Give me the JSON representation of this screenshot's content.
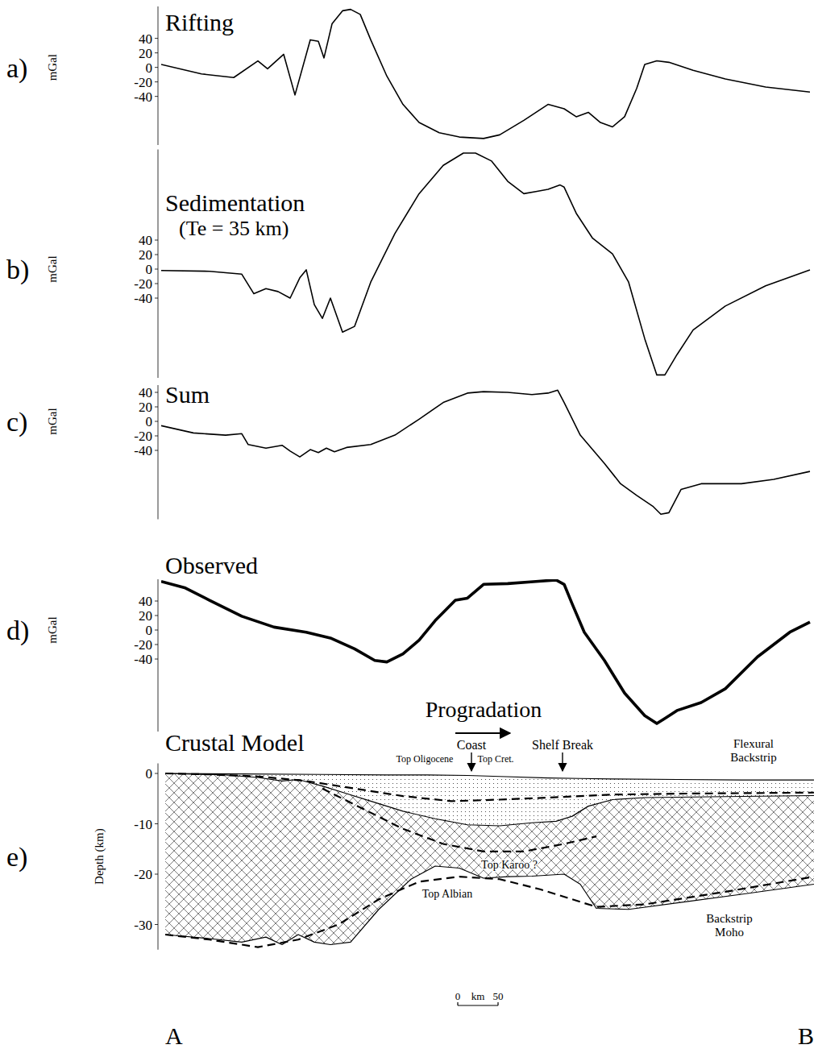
{
  "chart_data": [
    {
      "type": "line",
      "panel": "a)",
      "title": "Rifting",
      "ylabel": "mGal",
      "xlim": [
        0,
        810
      ],
      "ylim": [
        -107,
        84
      ],
      "yticks": [
        40,
        20,
        0,
        -20,
        -40
      ],
      "tick_labels": "y",
      "series": [
        {
          "color": "#000000",
          "line_style": "solid",
          "x": [
            0,
            50,
            90,
            120,
            132,
            152,
            166,
            185,
            195,
            202,
            212,
            225,
            235,
            247,
            260,
            280,
            300,
            320,
            345,
            370,
            400,
            420,
            450,
            480,
            500,
            515,
            530,
            545,
            560,
            575,
            590,
            600,
            615,
            630,
            660,
            700,
            750,
            805
          ],
          "values": [
            4,
            -9,
            -14,
            9,
            -2,
            18,
            -38,
            38,
            36,
            13,
            60,
            78,
            80,
            73,
            38,
            -12,
            -51,
            -76,
            -90,
            -96,
            -98,
            -93,
            -73,
            -51,
            -57,
            -68,
            -62,
            -76,
            -82,
            -68,
            -29,
            4,
            9,
            7,
            -4,
            -16,
            -27,
            -34
          ]
        }
      ]
    },
    {
      "type": "line",
      "panel": "b)",
      "title": "Sedimentation",
      "subtitle": "(Te = 35 km)",
      "ylabel": "mGal",
      "xlim": [
        0,
        810
      ],
      "ylim": [
        -150,
        165
      ],
      "yticks": [
        40,
        20,
        0,
        -20,
        -40
      ],
      "tick_labels": "y",
      "series": [
        {
          "color": "#000000",
          "line_style": "solid",
          "x": [
            0,
            60,
            100,
            115,
            130,
            145,
            160,
            172,
            180,
            190,
            200,
            210,
            225,
            240,
            260,
            290,
            320,
            350,
            375,
            390,
            410,
            430,
            450,
            465,
            480,
            495,
            500,
            515,
            535,
            560,
            580,
            600,
            615,
            625,
            640,
            660,
            700,
            750,
            805
          ],
          "values": [
            -2,
            -3,
            -7,
            -34,
            -27,
            -31,
            -40,
            -12,
            -1,
            -49,
            -68,
            -40,
            -87,
            -79,
            -18,
            49,
            104,
            143,
            160,
            160,
            149,
            121,
            104,
            107,
            110,
            116,
            113,
            77,
            43,
            21,
            -18,
            -96,
            -146,
            -146,
            -118,
            -84,
            -51,
            -23,
            -1
          ]
        }
      ]
    },
    {
      "type": "line",
      "panel": "c)",
      "title": "Sum",
      "ylabel": "mGal",
      "xlim": [
        0,
        810
      ],
      "ylim": [
        -135,
        50
      ],
      "yticks": [
        40,
        20,
        0,
        -20,
        -40
      ],
      "tick_labels": "y",
      "series": [
        {
          "color": "#000000",
          "line_style": "solid",
          "x": [
            0,
            40,
            80,
            100,
            108,
            130,
            150,
            160,
            172,
            185,
            195,
            205,
            215,
            230,
            260,
            290,
            320,
            350,
            380,
            400,
            430,
            460,
            480,
            492,
            500,
            520,
            550,
            570,
            590,
            610,
            620,
            630,
            645,
            670,
            720,
            760,
            805
          ],
          "values": [
            -6,
            -16,
            -19,
            -17,
            -32,
            -37,
            -33,
            -41,
            -49,
            -39,
            -43,
            -37,
            -42,
            -36,
            -32,
            -19,
            3,
            26,
            39,
            41,
            40,
            37,
            39,
            43,
            26,
            -19,
            -58,
            -86,
            -102,
            -117,
            -128,
            -126,
            -94,
            -86,
            -86,
            -80,
            -69
          ]
        }
      ]
    },
    {
      "type": "line",
      "panel": "d)",
      "title": "Observed",
      "ylabel": "mGal",
      "xlim": [
        0,
        810
      ],
      "ylim": [
        -140,
        70
      ],
      "yticks": [
        40,
        20,
        0,
        -20,
        -40
      ],
      "tick_labels": "y",
      "series": [
        {
          "color": "#000000",
          "line_style": "thick",
          "x": [
            0,
            30,
            60,
            100,
            140,
            180,
            210,
            240,
            265,
            280,
            300,
            320,
            340,
            365,
            380,
            400,
            430,
            465,
            490,
            500,
            510,
            525,
            550,
            575,
            600,
            615,
            625,
            640,
            670,
            700,
            740,
            780,
            805
          ],
          "values": [
            67,
            58,
            41,
            19,
            4,
            -3,
            -11,
            -26,
            -42,
            -44,
            -33,
            -14,
            13,
            41,
            44,
            63,
            64,
            67,
            69,
            63,
            36,
            -3,
            -42,
            -87,
            -118,
            -129,
            -122,
            -111,
            -100,
            -81,
            -37,
            -3,
            11
          ]
        }
      ]
    },
    {
      "type": "cross_section",
      "panel": "e)",
      "title": "Crustal Model",
      "ylabel": "Depth (km)",
      "xlim": [
        0,
        810
      ],
      "ylim": [
        -35,
        2
      ],
      "yticks": [
        0,
        -10,
        -20,
        -30
      ],
      "tick_labels": "y",
      "section": [
        "A",
        "B"
      ],
      "scale_bar": {
        "start": 368,
        "ticks": [
          0,
          50
        ],
        "label": "km"
      },
      "series": [
        {
          "color": "#000000",
          "line_style": "solid",
          "x": [
            5,
            100,
            200,
            280,
            330,
            380,
            420,
            480,
            520,
            560,
            640,
            720,
            810
          ],
          "values": [
            0,
            -0.1,
            -0.2,
            -0.3,
            -0.3,
            -0.4,
            -0.6,
            -0.9,
            -1.0,
            -1.1,
            -1.2,
            -1.3,
            -1.3
          ]
        },
        {
          "color": "#000000",
          "line_style": "solid",
          "x": [
            5,
            80,
            120,
            150,
            170,
            200,
            230,
            260,
            300,
            340,
            380,
            420,
            460,
            490,
            510,
            530,
            560,
            600,
            700,
            810
          ],
          "values": [
            0,
            -0.3,
            -0.8,
            -1.5,
            -1.2,
            -2.5,
            -4,
            -5.5,
            -7.5,
            -9,
            -10.2,
            -10.4,
            -9.8,
            -9.5,
            -8.5,
            -6.5,
            -5.2,
            -4.8,
            -4.6,
            -4.4
          ]
        },
        {
          "color": "#000000",
          "line_style": "solid",
          "x": [
            5,
            60,
            100,
            130,
            150,
            170,
            190,
            210,
            235,
            270,
            310,
            340,
            370,
            400,
            430,
            460,
            500,
            520,
            540,
            580,
            650,
            720,
            810
          ],
          "values": [
            -32,
            -32.8,
            -33.5,
            -32.5,
            -34,
            -32,
            -33.5,
            -34,
            -33.5,
            -27,
            -21,
            -18.4,
            -18.8,
            -20.8,
            -20.5,
            -20.4,
            -20,
            -22,
            -26.8,
            -27,
            -25.5,
            -24,
            -22
          ]
        },
        {
          "color": "#000000",
          "line_style": "dashed",
          "x": [
            5,
            60,
            120,
            180,
            240,
            300,
            360,
            420,
            480,
            520,
            560,
            650,
            810
          ],
          "values": [
            0,
            -0.2,
            -0.6,
            -1.5,
            -3,
            -4.5,
            -5.5,
            -5.2,
            -4.8,
            -4.5,
            -4.2,
            -4,
            -3.8
          ]
        },
        {
          "color": "#000000",
          "line_style": "dashed",
          "x": [
            200,
            250,
            300,
            350,
            400,
            450,
            500,
            540
          ],
          "values": [
            -3,
            -7,
            -11,
            -14,
            -15.5,
            -15.5,
            -14,
            -12.5
          ]
        },
        {
          "color": "#000000",
          "line_style": "dashed",
          "x": [
            5,
            60,
            120,
            170,
            220,
            270,
            320,
            370,
            420,
            470,
            520,
            540,
            600,
            700,
            810
          ],
          "values": [
            -32,
            -33,
            -34.5,
            -33,
            -30,
            -25,
            -21.5,
            -20.5,
            -21,
            -23,
            -25.5,
            -26.5,
            -26,
            -23.5,
            -20.5
          ]
        }
      ],
      "annotations": [
        {
          "text": "Progradation",
          "x": 400,
          "y": 11.2,
          "arrow": "right"
        },
        {
          "text": "Coast",
          "x": 385,
          "y": 4.8,
          "arrow": "down"
        },
        {
          "text": "Shelf Break",
          "x": 498,
          "y": 4.8,
          "arrow": "down"
        },
        {
          "text": "Top Oligocene",
          "x": 327,
          "y": 2.2
        },
        {
          "text": "Top Cret.",
          "x": 415,
          "y": 2.2
        },
        {
          "text": "Flexural\nBackstrip",
          "x": 735,
          "y": 5.1
        },
        {
          "text": "Top Albian",
          "x": 355,
          "y": -24.6
        },
        {
          "text": "Top Karoo ?",
          "x": 432,
          "y": -18.9
        },
        {
          "text": "Backstrip\nMoho",
          "x": 705,
          "y": -29.6
        }
      ]
    }
  ]
}
